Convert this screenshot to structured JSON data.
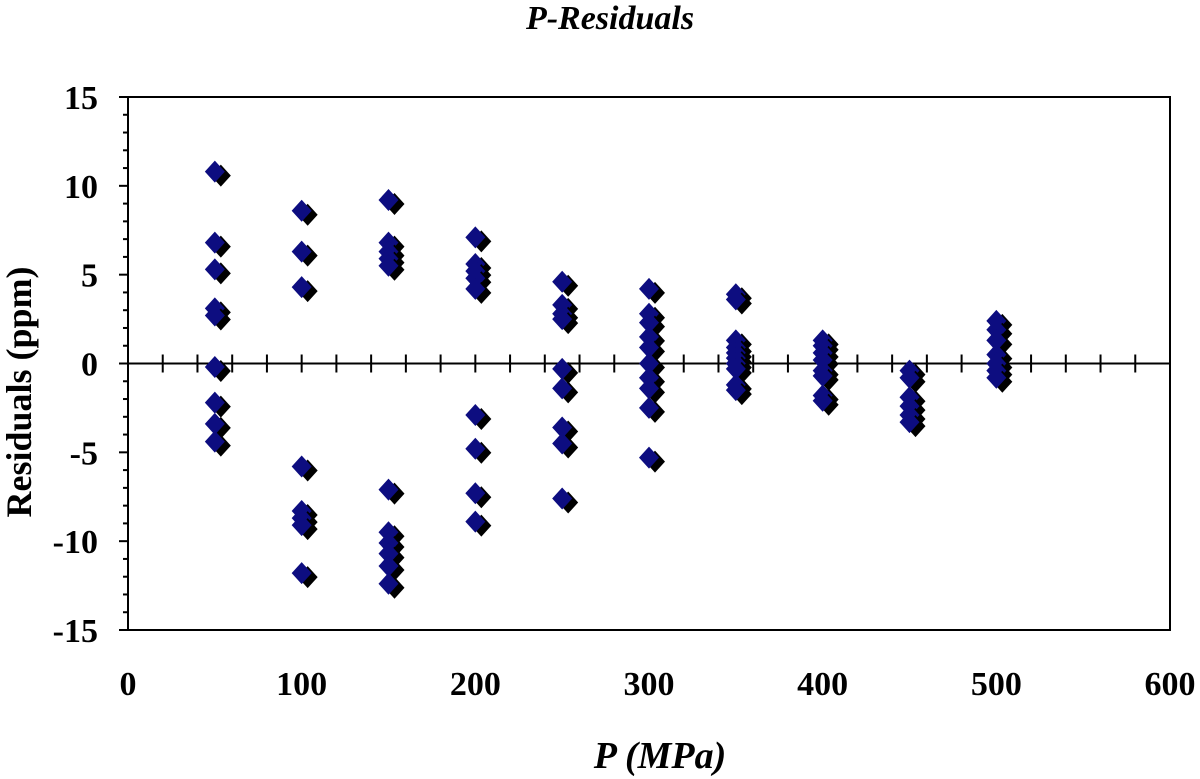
{
  "chart_data": {
    "type": "scatter",
    "title": "P-Residuals",
    "xlabel": "P (MPa)",
    "ylabel": "Residuals (ppm)",
    "xlim": [
      0,
      600
    ],
    "ylim": [
      -15,
      15
    ],
    "x_ticks": [
      0,
      100,
      200,
      300,
      400,
      500,
      600
    ],
    "y_ticks": [
      -15,
      -10,
      -5,
      0,
      5,
      10,
      15
    ],
    "x_tick_labels": [
      "0",
      "100",
      "200",
      "300",
      "400",
      "500",
      "600"
    ],
    "y_tick_labels": [
      "-15",
      "-10",
      "-5",
      "0",
      "5",
      "10",
      "15"
    ],
    "grid": false,
    "legend": "none",
    "marker": "diamond",
    "marker_color": "#0d0d80",
    "marker_shadow_color": "#000000",
    "series": [
      {
        "points": [
          [
            50,
            10.8
          ],
          [
            50,
            6.8
          ],
          [
            50,
            5.3
          ],
          [
            50,
            3.1
          ],
          [
            50,
            2.7
          ],
          [
            50,
            -0.2
          ],
          [
            50,
            -2.2
          ],
          [
            50,
            -3.4
          ],
          [
            50,
            -4.4
          ],
          [
            100,
            8.6
          ],
          [
            100,
            6.3
          ],
          [
            100,
            4.3
          ],
          [
            100,
            -5.8
          ],
          [
            100,
            -8.3
          ],
          [
            100,
            -8.7
          ],
          [
            100,
            -9.1
          ],
          [
            100,
            -11.8
          ],
          [
            150,
            9.2
          ],
          [
            150,
            6.8
          ],
          [
            150,
            6.3
          ],
          [
            150,
            5.9
          ],
          [
            150,
            5.5
          ],
          [
            150,
            -7.1
          ],
          [
            150,
            -9.5
          ],
          [
            150,
            -10.1
          ],
          [
            150,
            -10.7
          ],
          [
            150,
            -11.4
          ],
          [
            150,
            -12.4
          ],
          [
            200,
            7.1
          ],
          [
            200,
            5.6
          ],
          [
            200,
            5.2
          ],
          [
            200,
            4.8
          ],
          [
            200,
            4.2
          ],
          [
            200,
            -2.9
          ],
          [
            200,
            -4.8
          ],
          [
            200,
            -7.3
          ],
          [
            200,
            -8.9
          ],
          [
            250,
            4.6
          ],
          [
            250,
            3.3
          ],
          [
            250,
            2.8
          ],
          [
            250,
            2.5
          ],
          [
            250,
            -0.3
          ],
          [
            250,
            -1.4
          ],
          [
            250,
            -3.6
          ],
          [
            250,
            -4.5
          ],
          [
            250,
            -7.6
          ],
          [
            300,
            4.2
          ],
          [
            300,
            2.8
          ],
          [
            300,
            2.3
          ],
          [
            300,
            1.5
          ],
          [
            300,
            0.9
          ],
          [
            300,
            0.0
          ],
          [
            300,
            -0.8
          ],
          [
            300,
            -1.4
          ],
          [
            300,
            -2.5
          ],
          [
            300,
            -5.3
          ],
          [
            350,
            3.9
          ],
          [
            350,
            3.6
          ],
          [
            350,
            1.3
          ],
          [
            350,
            0.9
          ],
          [
            350,
            0.6
          ],
          [
            350,
            0.3
          ],
          [
            350,
            0.0
          ],
          [
            350,
            -0.3
          ],
          [
            350,
            -1.2
          ],
          [
            350,
            -1.5
          ],
          [
            400,
            1.3
          ],
          [
            400,
            1.0
          ],
          [
            400,
            0.6
          ],
          [
            400,
            0.2
          ],
          [
            400,
            -0.4
          ],
          [
            400,
            -0.7
          ],
          [
            400,
            -1.8
          ],
          [
            400,
            -2.1
          ],
          [
            450,
            -0.4
          ],
          [
            450,
            -0.8
          ],
          [
            450,
            -1.9
          ],
          [
            450,
            -2.4
          ],
          [
            450,
            -2.9
          ],
          [
            450,
            -3.3
          ],
          [
            500,
            2.4
          ],
          [
            500,
            1.9
          ],
          [
            500,
            1.3
          ],
          [
            500,
            0.5
          ],
          [
            500,
            0.0
          ],
          [
            500,
            -0.4
          ],
          [
            500,
            -0.8
          ]
        ]
      }
    ]
  }
}
